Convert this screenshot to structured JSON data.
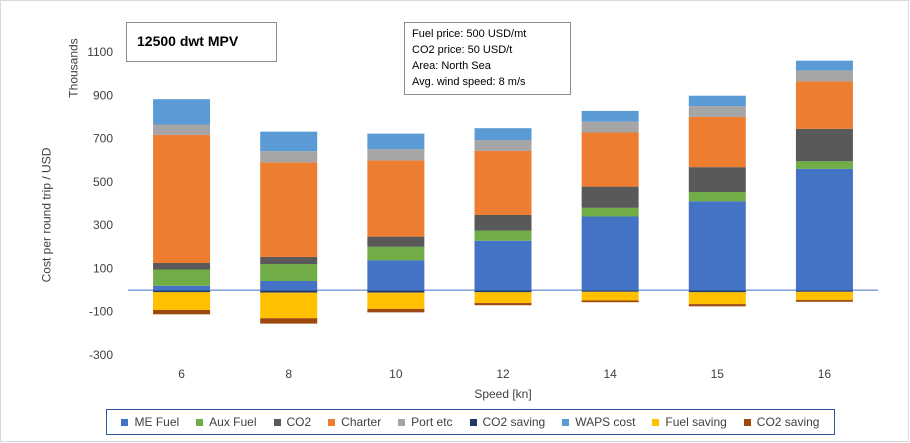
{
  "chart_data": {
    "type": "stacked-bar",
    "title": "12500 dwt MPV",
    "info_lines": [
      "Fuel price: 500 USD/mt",
      "CO2 price: 50 USD/t",
      "Area: North Sea",
      "Avg. wind speed: 8 m/s"
    ],
    "xlabel": "Speed [kn]",
    "ylabel": "Cost per round trip / USD",
    "yunit": "Thousands",
    "ylim": [
      -300,
      1100
    ],
    "yticks": [
      1100,
      900,
      700,
      500,
      300,
      100,
      -100,
      -300
    ],
    "categories": [
      "6",
      "8",
      "10",
      "12",
      "14",
      "15",
      "16"
    ],
    "series": [
      {
        "name": "ME Fuel",
        "color": "#4472c4",
        "values": [
          20,
          42,
          138,
          228,
          340,
          410,
          560
        ]
      },
      {
        "name": "Aux Fuel",
        "color": "#70ad47",
        "values": [
          75,
          78,
          62,
          47,
          40,
          43,
          35
        ]
      },
      {
        "name": "CO2",
        "color": "#595959",
        "values": [
          30,
          33,
          47,
          72,
          98,
          115,
          150
        ]
      },
      {
        "name": "Charter",
        "color": "#ed7d31",
        "values": [
          592,
          437,
          352,
          296,
          250,
          232,
          220
        ]
      },
      {
        "name": "Port etc",
        "color": "#a5a5a5",
        "values": [
          48,
          52,
          52,
          50,
          50,
          50,
          50
        ]
      },
      {
        "name": "CO2 saving",
        "color": "#203864",
        "values": [
          -10,
          -12,
          -12,
          -10,
          -8,
          -10,
          -8
        ]
      },
      {
        "name": "WAPS cost",
        "color": "#5b9bd5",
        "values": [
          117,
          90,
          72,
          55,
          50,
          48,
          45
        ]
      },
      {
        "name": "Fuel saving",
        "color": "#ffc000",
        "values": [
          -82,
          -118,
          -75,
          -50,
          -40,
          -55,
          -38
        ]
      },
      {
        "name": "CO2 saving",
        "color": "#9e480e",
        "values": [
          -20,
          -25,
          -16,
          -10,
          -8,
          -10,
          -8
        ]
      }
    ]
  }
}
